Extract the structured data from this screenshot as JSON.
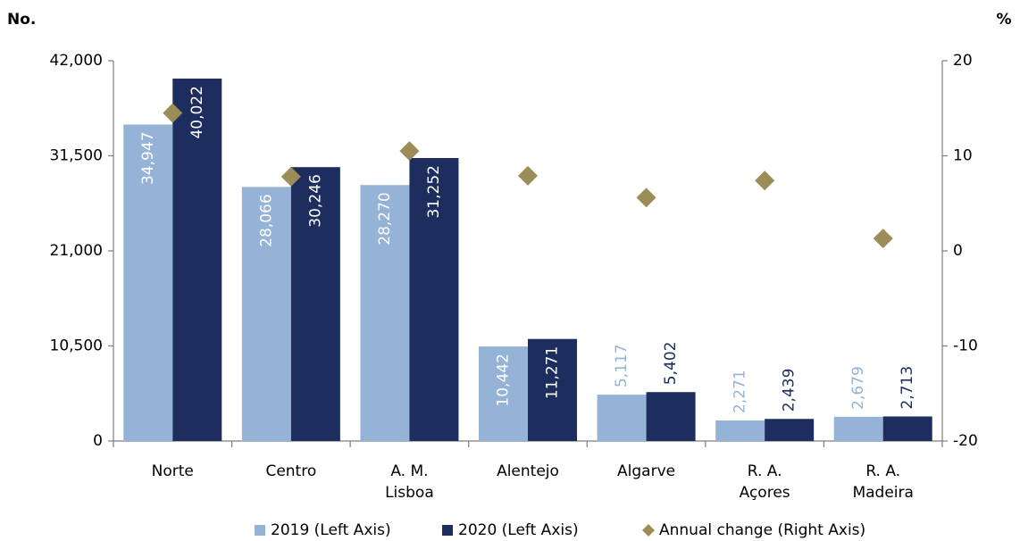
{
  "chart_data": {
    "type": "bar",
    "y_axis_label": "No.",
    "y2_axis_label": "%",
    "categories": [
      "Norte",
      "Centro",
      "A. M. Lisboa",
      "Alentejo",
      "Algarve",
      "R. A. Açores",
      "R. A. Madeira"
    ],
    "series": [
      {
        "name": "2019 (Left Axis)",
        "color": "#95b3d7",
        "values": [
          34947,
          28066,
          28270,
          10442,
          5117,
          2271,
          2679
        ],
        "value_labels": [
          "34,947",
          "28,066",
          "28,270",
          "10,442",
          "5,117",
          "2,271",
          "2,679"
        ]
      },
      {
        "name": "2020 (Left Axis)",
        "color": "#1c2d5e",
        "values": [
          40022,
          30246,
          31252,
          11271,
          5402,
          2439,
          2713
        ],
        "value_labels": [
          "40,022",
          "30,246",
          "31,252",
          "11,271",
          "5,402",
          "2,439",
          "2,713"
        ]
      },
      {
        "name": "Annual change (Right Axis)",
        "color": "#9c8d58",
        "type": "scatter",
        "axis": "y2",
        "values": [
          14.5,
          7.8,
          10.5,
          7.9,
          5.6,
          7.4,
          1.3
        ]
      }
    ],
    "ylim": [
      0,
      42000
    ],
    "yticks": [
      0,
      {
        "value": 10500,
        "label": "10,500"
      },
      {
        "value": 21000,
        "label": "21,000"
      },
      {
        "value": 31500,
        "label": "31,500"
      },
      {
        "value": 42000,
        "label": "42,000"
      }
    ],
    "y2lim": [
      -20,
      20
    ],
    "y2ticks": [
      -20,
      -10,
      0,
      10,
      20
    ],
    "legend": "bottom"
  }
}
